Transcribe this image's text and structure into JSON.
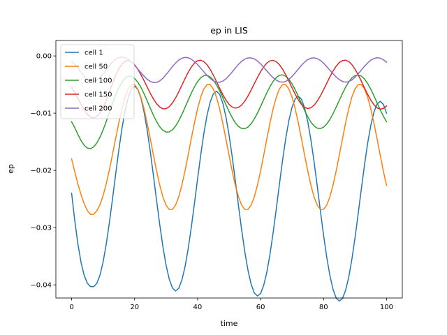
{
  "chart_data": {
    "type": "line",
    "title": "ep in LIS",
    "xlabel": "time",
    "ylabel": "ep",
    "xlim": [
      -5,
      105
    ],
    "ylim": [
      -0.0423,
      0.0027
    ],
    "xticks": [
      0,
      20,
      40,
      60,
      80,
      100
    ],
    "xtick_labels": [
      "0",
      "20",
      "40",
      "60",
      "80",
      "100"
    ],
    "yticks": [
      -0.04,
      -0.03,
      -0.02,
      -0.01,
      0.0
    ],
    "ytick_labels": [
      "−0.04",
      "−0.03",
      "−0.02",
      "−0.01",
      "0.00"
    ],
    "grid": false,
    "legend_position": "top-left",
    "x": [
      0,
      1,
      2,
      3,
      4,
      5,
      6,
      7,
      8,
      9,
      10,
      11,
      12,
      13,
      14,
      15,
      16,
      17,
      18,
      19,
      20,
      21,
      22,
      23,
      24,
      25,
      26,
      27,
      28,
      29,
      30,
      31,
      32,
      33,
      34,
      35,
      36,
      37,
      38,
      39,
      40,
      41,
      42,
      43,
      44,
      45,
      46,
      47,
      48,
      49,
      50,
      51,
      52,
      53,
      54,
      55,
      56,
      57,
      58,
      59,
      60,
      61,
      62,
      63,
      64,
      65,
      66,
      67,
      68,
      69,
      70,
      71,
      72,
      73,
      74,
      75,
      76,
      77,
      78,
      79,
      80,
      81,
      82,
      83,
      84,
      85,
      86,
      87,
      88,
      89,
      90,
      91,
      92,
      93,
      94,
      95,
      96,
      97,
      98,
      99,
      100
    ],
    "series": [
      {
        "name": "cell 1",
        "color": "#1f77b4",
        "values": [
          -0.024,
          -0.02878,
          -0.03287,
          -0.0361,
          -0.03836,
          -0.03972,
          -0.04031,
          -0.04032,
          -0.03974,
          -0.03831,
          -0.03599,
          -0.03286,
          -0.02908,
          -0.0249,
          -0.02058,
          -0.0164,
          -0.01262,
          -0.00949,
          -0.00717,
          -0.00574,
          -0.00529,
          -0.00583,
          -0.00735,
          -0.00978,
          -0.01298,
          -0.0168,
          -0.02101,
          -0.02535,
          -0.02956,
          -0.03338,
          -0.03658,
          -0.03901,
          -0.04053,
          -0.04107,
          -0.04062,
          -0.03919,
          -0.03687,
          -0.03374,
          -0.02996,
          -0.02578,
          -0.02146,
          -0.01728,
          -0.0135,
          -0.01037,
          -0.00805,
          -0.00662,
          -0.00617,
          -0.00671,
          -0.00823,
          -0.01066,
          -0.01386,
          -0.01768,
          -0.02189,
          -0.02623,
          -0.03044,
          -0.03426,
          -0.03746,
          -0.03989,
          -0.04141,
          -0.04195,
          -0.0415,
          -0.04007,
          -0.03775,
          -0.03462,
          -0.03084,
          -0.02666,
          -0.02234,
          -0.01816,
          -0.01438,
          -0.01125,
          -0.00893,
          -0.0075,
          -0.00705,
          -0.00759,
          -0.00911,
          -0.01154,
          -0.01474,
          -0.01856,
          -0.02277,
          -0.02711,
          -0.03132,
          -0.03514,
          -0.03834,
          -0.04077,
          -0.04229,
          -0.04283,
          -0.04238,
          -0.04095,
          -0.03863,
          -0.0355,
          -0.03172,
          -0.02754,
          -0.02322,
          -0.01904,
          -0.01526,
          -0.01213,
          -0.00981,
          -0.00838,
          -0.00793,
          -0.00847,
          -0.00999
        ]
      },
      {
        "name": "cell 50",
        "color": "#ff7f0e",
        "values": [
          -0.018,
          -0.02027,
          -0.02239,
          -0.02426,
          -0.02583,
          -0.02703,
          -0.0277,
          -0.02766,
          -0.02707,
          -0.026,
          -0.02441,
          -0.02232,
          -0.01987,
          -0.01716,
          -0.01436,
          -0.01164,
          -0.0092,
          -0.00718,
          -0.00574,
          -0.005,
          -0.00502,
          -0.00577,
          -0.00721,
          -0.00925,
          -0.01174,
          -0.01452,
          -0.01739,
          -0.02016,
          -0.02264,
          -0.02466,
          -0.02609,
          -0.02683,
          -0.02682,
          -0.02607,
          -0.02463,
          -0.02259,
          -0.0201,
          -0.01732,
          -0.01445,
          -0.01168,
          -0.0092,
          -0.00718,
          -0.00575,
          -0.00501,
          -0.00502,
          -0.00577,
          -0.00721,
          -0.00925,
          -0.01174,
          -0.01452,
          -0.01739,
          -0.02016,
          -0.02264,
          -0.02466,
          -0.02609,
          -0.02683,
          -0.02682,
          -0.02607,
          -0.02463,
          -0.02259,
          -0.0201,
          -0.01732,
          -0.01445,
          -0.01168,
          -0.0092,
          -0.00718,
          -0.00575,
          -0.00501,
          -0.00502,
          -0.00577,
          -0.00721,
          -0.00925,
          -0.01174,
          -0.01452,
          -0.01739,
          -0.02016,
          -0.02264,
          -0.02466,
          -0.02609,
          -0.02683,
          -0.02682,
          -0.02607,
          -0.02463,
          -0.02259,
          -0.0201,
          -0.01732,
          -0.01445,
          -0.01168,
          -0.0092,
          -0.00718,
          -0.00575,
          -0.00501,
          -0.00502,
          -0.00577,
          -0.00721,
          -0.00925,
          -0.01174,
          -0.01452,
          -0.01739,
          -0.02016,
          -0.02264
        ]
      },
      {
        "name": "cell 100",
        "color": "#2ca02c",
        "values": [
          -0.0115,
          -0.01255,
          -0.01373,
          -0.0148,
          -0.01562,
          -0.0161,
          -0.0162,
          -0.0159,
          -0.01522,
          -0.01421,
          -0.01292,
          -0.01144,
          -0.00986,
          -0.00829,
          -0.00683,
          -0.00557,
          -0.00457,
          -0.00389,
          -0.00356,
          -0.00358,
          -0.00393,
          -0.00458,
          -0.00549,
          -0.00661,
          -0.00786,
          -0.00916,
          -0.0104,
          -0.0115,
          -0.01239,
          -0.013,
          -0.0133,
          -0.01327,
          -0.01291,
          -0.01225,
          -0.01134,
          -0.01024,
          -0.00901,
          -0.00774,
          -0.00651,
          -0.0054,
          -0.00448,
          -0.00381,
          -0.00344,
          -0.00339,
          -0.00366,
          -0.00422,
          -0.00505,
          -0.00609,
          -0.00727,
          -0.00851,
          -0.00971,
          -0.0108,
          -0.0117,
          -0.01233,
          -0.01268,
          -0.01271,
          -0.01243,
          -0.01185,
          -0.01102,
          -0.01,
          -0.00884,
          -0.00762,
          -0.00643,
          -0.00534,
          -0.00443,
          -0.00376,
          -0.00338,
          -0.00331,
          -0.00355,
          -0.00409,
          -0.00489,
          -0.00592,
          -0.00709,
          -0.00833,
          -0.00955,
          -0.01066,
          -0.01158,
          -0.01224,
          -0.01262,
          -0.01269,
          -0.01244,
          -0.0119,
          -0.0111,
          -0.0101,
          -0.00896,
          -0.00775,
          -0.00656,
          -0.00546,
          -0.00452,
          -0.00383,
          -0.00342,
          -0.00332,
          -0.00353,
          -0.00403,
          -0.00481,
          -0.00581,
          -0.00697,
          -0.00821,
          -0.00943,
          -0.01055,
          -0.01149
        ]
      },
      {
        "name": "cell 150",
        "color": "#d62728",
        "values": [
          -0.0055,
          -0.0064,
          -0.00745,
          -0.00848,
          -0.00941,
          -0.01017,
          -0.01066,
          -0.01082,
          -0.0106,
          -0.00998,
          -0.00899,
          -0.00772,
          -0.00628,
          -0.00479,
          -0.0034,
          -0.00224,
          -0.0014,
          -0.00092,
          -0.00081,
          -0.00103,
          -0.00155,
          -0.00231,
          -0.00326,
          -0.00433,
          -0.00545,
          -0.00655,
          -0.00754,
          -0.00836,
          -0.00894,
          -0.00924,
          -0.00922,
          -0.00887,
          -0.00823,
          -0.00735,
          -0.00629,
          -0.00514,
          -0.00397,
          -0.00288,
          -0.00195,
          -0.00125,
          -0.00084,
          -0.00075,
          -0.00099,
          -0.00154,
          -0.00235,
          -0.00336,
          -0.00449,
          -0.00565,
          -0.00675,
          -0.00771,
          -0.00846,
          -0.00894,
          -0.00912,
          -0.00899,
          -0.00857,
          -0.00789,
          -0.007,
          -0.00597,
          -0.00487,
          -0.00377,
          -0.00276,
          -0.00189,
          -0.00124,
          -0.00086,
          -0.00078,
          -0.00101,
          -0.00154,
          -0.00232,
          -0.0033,
          -0.00441,
          -0.00557,
          -0.00669,
          -0.00769,
          -0.00848,
          -0.009,
          -0.00919,
          -0.00905,
          -0.0086,
          -0.00789,
          -0.00697,
          -0.00591,
          -0.00478,
          -0.00367,
          -0.00265,
          -0.00179,
          -0.00116,
          -0.0008,
          -0.00074,
          -0.00098,
          -0.00152,
          -0.00232,
          -0.00331,
          -0.00442,
          -0.00558,
          -0.00671,
          -0.00772,
          -0.00853,
          -0.00907,
          -0.00929,
          -0.00917,
          -0.00874
        ]
      },
      {
        "name": "cell 200",
        "color": "#9467bd",
        "values": [
          -0.001,
          -0.0015,
          -0.00215,
          -0.00285,
          -0.00351,
          -0.00404,
          -0.00436,
          -0.00443,
          -0.00424,
          -0.0038,
          -0.00317,
          -0.00244,
          -0.00171,
          -0.00107,
          -0.00058,
          -0.00028,
          -0.00019,
          -0.0003,
          -0.0006,
          -0.00106,
          -0.00163,
          -0.00227,
          -0.00293,
          -0.00355,
          -0.00408,
          -0.00446,
          -0.00465,
          -0.00462,
          -0.00436,
          -0.00389,
          -0.00327,
          -0.00257,
          -0.00187,
          -0.00124,
          -0.00074,
          -0.0004,
          -0.00026,
          -0.00032,
          -0.00057,
          -0.00098,
          -0.00152,
          -0.00214,
          -0.00278,
          -0.0034,
          -0.00394,
          -0.00435,
          -0.00458,
          -0.0046,
          -0.0044,
          -0.004,
          -0.00344,
          -0.00279,
          -0.00211,
          -0.00147,
          -0.00094,
          -0.00055,
          -0.00035,
          -0.00034,
          -0.00052,
          -0.00088,
          -0.00139,
          -0.00199,
          -0.00263,
          -0.00325,
          -0.00381,
          -0.00424,
          -0.00452,
          -0.00459,
          -0.00444,
          -0.00409,
          -0.00357,
          -0.00295,
          -0.00228,
          -0.00163,
          -0.00107,
          -0.00064,
          -0.00039,
          -0.00033,
          -0.00047,
          -0.00079,
          -0.00127,
          -0.00185,
          -0.00248,
          -0.00311,
          -0.00368,
          -0.00414,
          -0.00446,
          -0.00458,
          -0.00449,
          -0.00419,
          -0.00372,
          -0.00312,
          -0.00246,
          -0.00181,
          -0.00122,
          -0.00075,
          -0.00044,
          -0.00032,
          -0.0004,
          -0.00067,
          -0.0011
        ]
      }
    ]
  }
}
